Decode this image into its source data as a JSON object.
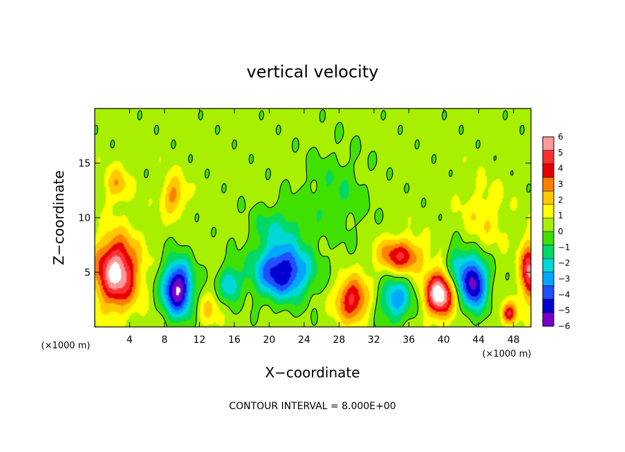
{
  "chart_data": {
    "type": "heatmap",
    "title": "vertical velocity",
    "xlabel": "X−coordinate",
    "ylabel": "Z−coordinate",
    "x_unit_label_left": "(×1000 m)",
    "x_unit_label_right": "(×1000 m)",
    "xlim": [
      0,
      50
    ],
    "ylim": [
      0,
      20
    ],
    "x_ticks": [
      4,
      8,
      12,
      16,
      20,
      24,
      28,
      32,
      36,
      40,
      44,
      48
    ],
    "y_ticks": [
      5,
      10,
      15
    ],
    "footer": "CONTOUR INTERVAL = 8.000E+00",
    "colorbar": {
      "levels": [
        6,
        5,
        4,
        3,
        2,
        1,
        0,
        "−1",
        "−2",
        "−3",
        "−4",
        "−5",
        "−6"
      ],
      "range": [
        -6,
        6
      ],
      "colors": [
        "#ff9a9a",
        "#ff3030",
        "#e80000",
        "#ff8000",
        "#ffc800",
        "#ffff00",
        "#a8f000",
        "#40e000",
        "#00d868",
        "#00d8d8",
        "#00a8ff",
        "#2050ff",
        "#0000d0",
        "#7a00c8"
      ]
    },
    "features": [
      {
        "x": 2.5,
        "z": 5.0,
        "w": 6.0,
        "sx": 2.4,
        "sz": 3.2
      },
      {
        "x": 9.5,
        "z": 3.5,
        "w": -6.5,
        "sx": 1.7,
        "sz": 2.5
      },
      {
        "x": 9.0,
        "z": 12.0,
        "w": 2.5,
        "sx": 1.3,
        "sz": 1.8
      },
      {
        "x": 2.5,
        "z": 13.0,
        "w": 2.0,
        "sx": 1.4,
        "sz": 1.6
      },
      {
        "x": 15.5,
        "z": 4.0,
        "w": -3.0,
        "sx": 1.2,
        "sz": 1.6
      },
      {
        "x": 21.5,
        "z": 5.0,
        "w": -5.5,
        "sx": 3.2,
        "sz": 2.4
      },
      {
        "x": 21.0,
        "z": 9.0,
        "w": -1.8,
        "sx": 3.0,
        "sz": 2.2
      },
      {
        "x": 27.5,
        "z": 12.0,
        "w": -1.2,
        "sx": 3.5,
        "sz": 4.0
      },
      {
        "x": 29.5,
        "z": 2.5,
        "w": 4.2,
        "sx": 1.8,
        "sz": 2.0
      },
      {
        "x": 34.5,
        "z": 2.5,
        "w": -3.6,
        "sx": 1.8,
        "sz": 2.0
      },
      {
        "x": 35.0,
        "z": 6.5,
        "w": 3.8,
        "sx": 2.6,
        "sz": 1.6
      },
      {
        "x": 39.5,
        "z": 3.0,
        "w": 6.5,
        "sx": 1.6,
        "sz": 2.0
      },
      {
        "x": 43.5,
        "z": 4.0,
        "w": -6.0,
        "sx": 1.5,
        "sz": 2.4
      },
      {
        "x": 41.5,
        "z": 5.5,
        "w": -2.5,
        "sx": 1.2,
        "sz": 2.0
      },
      {
        "x": 47.5,
        "z": 1.2,
        "w": 3.8,
        "sx": 0.9,
        "sz": 1.0
      },
      {
        "x": 49.8,
        "z": 5.0,
        "w": 5.0,
        "sx": 1.0,
        "sz": 2.6
      },
      {
        "x": 44.5,
        "z": 10.0,
        "w": 1.2,
        "sx": 2.5,
        "sz": 3.0
      },
      {
        "x": 13.0,
        "z": 1.5,
        "w": 1.5,
        "sx": 1.2,
        "sz": 1.5
      }
    ]
  }
}
